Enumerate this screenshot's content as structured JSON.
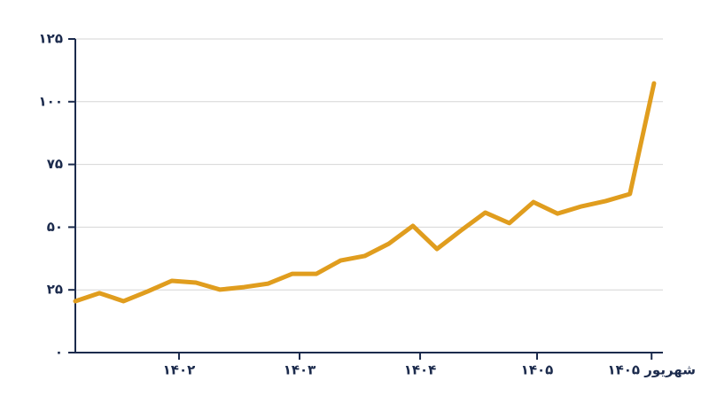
{
  "chart_data": {
    "type": "line",
    "x": [
      0,
      1,
      2,
      3,
      4,
      5,
      6,
      7,
      8,
      9,
      10,
      11,
      12,
      13,
      14,
      15,
      16,
      17,
      18,
      19,
      20,
      21,
      22,
      23,
      24
    ],
    "series": [
      {
        "color": "#e09d1e",
        "values": [
          20.5,
          23.7,
          20.5,
          24.4,
          28.6,
          27.9,
          25.1,
          26.1,
          27.5,
          31.4,
          31.4,
          36.7,
          38.5,
          43.4,
          50.5,
          41.3,
          48.7,
          55.8,
          51.6,
          60.0,
          55.4,
          58.3,
          60.4,
          63.2,
          107.3
        ]
      }
    ],
    "xlim": [
      0,
      24.37
    ],
    "xticks": [
      {
        "value": 4.3,
        "label": "۱۴۰۲"
      },
      {
        "value": 9.3,
        "label": "۱۴۰۳"
      },
      {
        "value": 14.3,
        "label": "۱۴۰۴"
      },
      {
        "value": 19.15,
        "label": "۱۴۰۵"
      },
      {
        "value": 23.9,
        "label": "شهریور ۱۴۰۵"
      }
    ],
    "ylim": [
      0,
      125
    ],
    "yticks": [
      {
        "value": 0,
        "label": "۰"
      },
      {
        "value": 25,
        "label": "۲۵"
      },
      {
        "value": 50,
        "label": "۵۰"
      },
      {
        "value": 75,
        "label": "۷۵"
      },
      {
        "value": 100,
        "label": "۱۰۰"
      },
      {
        "value": 125,
        "label": "۱۲۵"
      }
    ],
    "grid": true
  }
}
